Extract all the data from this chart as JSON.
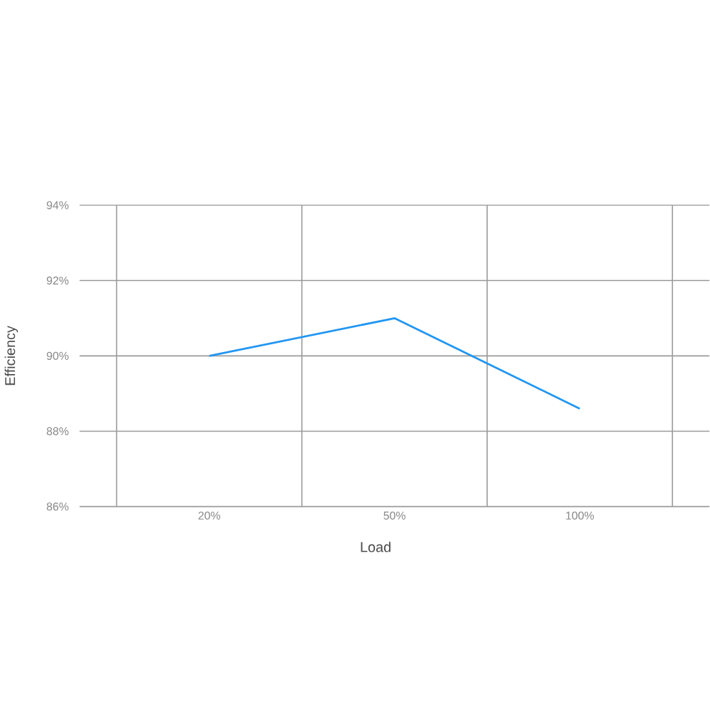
{
  "chart_data": {
    "type": "line",
    "xlabel": "Load",
    "ylabel": "Efficiency",
    "categories": [
      "20%",
      "50%",
      "100%"
    ],
    "series": [
      {
        "color": "#2196f3",
        "values": [
          90.0,
          91.0,
          88.6
        ]
      }
    ],
    "ylim": [
      86,
      94
    ],
    "yticks": [
      {
        "value": 86,
        "label": "86%"
      },
      {
        "value": 88,
        "label": "88%"
      },
      {
        "value": 90,
        "label": "90%"
      },
      {
        "value": 92,
        "label": "92%"
      },
      {
        "value": 94,
        "label": "94%"
      }
    ],
    "grid": true,
    "marker": "none",
    "line_style": "solid"
  }
}
